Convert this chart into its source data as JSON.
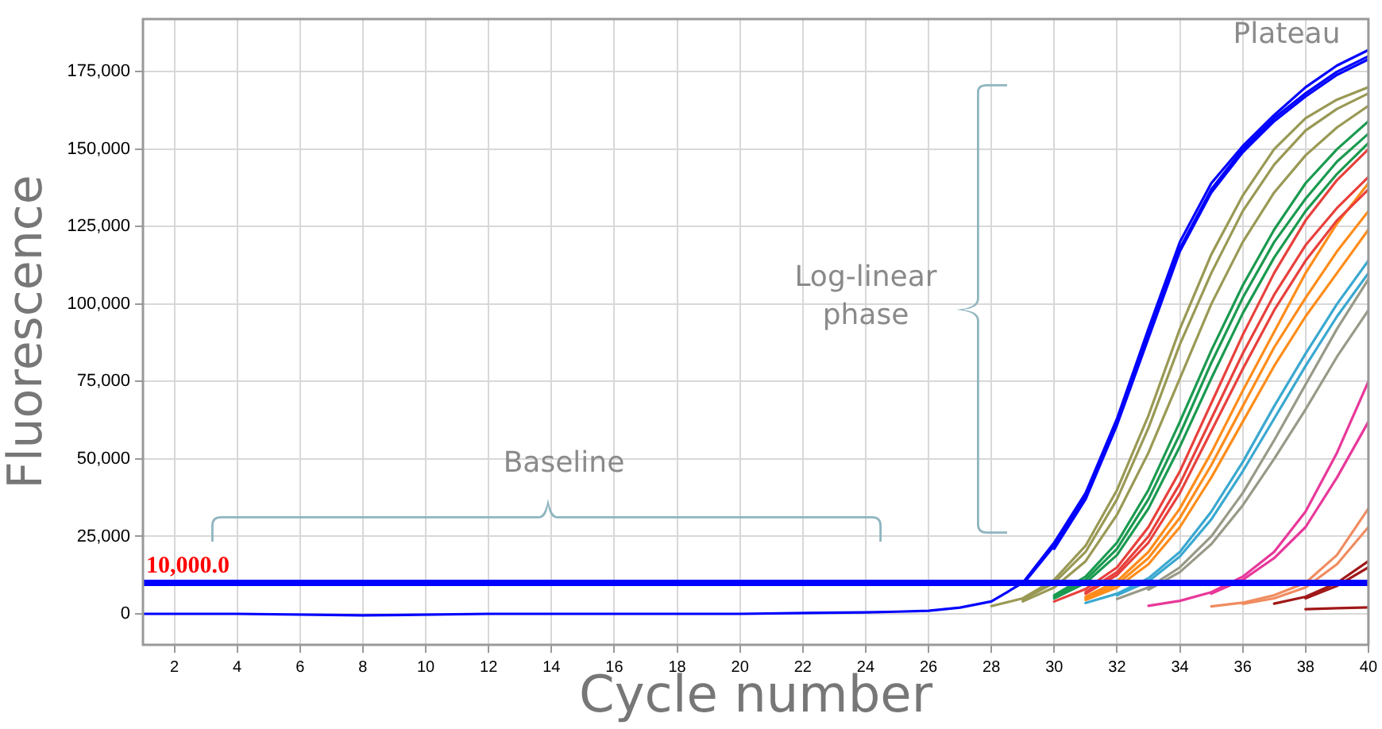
{
  "chart_data": {
    "type": "line",
    "xlabel": "Cycle number",
    "ylabel": "Fluorescence",
    "annotations": [
      "Plateau",
      "Log-linear phase",
      "Baseline"
    ],
    "x": [
      1,
      4,
      8,
      12,
      16,
      20,
      24,
      25,
      26,
      27,
      28,
      29,
      30,
      31,
      32,
      33,
      34,
      35,
      36,
      37,
      38,
      39,
      40
    ],
    "xlim": [
      1,
      40
    ],
    "xticks": [
      2,
      4,
      6,
      8,
      10,
      12,
      14,
      16,
      18,
      20,
      22,
      24,
      26,
      28,
      30,
      32,
      34,
      36,
      38,
      40
    ],
    "ylim": [
      -10000,
      192000
    ],
    "yticks": [
      {
        "value": 0,
        "label": "0"
      },
      {
        "value": 25000,
        "label": "25,000"
      },
      {
        "value": 50000,
        "label": "50,000"
      },
      {
        "value": 75000,
        "label": "75,000"
      },
      {
        "value": 100000,
        "label": "100,000"
      },
      {
        "value": 125000,
        "label": "125,000"
      },
      {
        "value": 150000,
        "label": "150,000"
      },
      {
        "value": 175000,
        "label": "175,000"
      }
    ],
    "grid": true,
    "legend": false,
    "marker": "none",
    "line_style": "solid",
    "ref_lines": [
      {
        "axis": "y",
        "value": 10000,
        "label": "10,000.0",
        "color": "#0000ff"
      }
    ],
    "series": [
      {
        "color": "#0000ff",
        "values": [
          0,
          0,
          -500,
          0,
          0,
          0,
          500,
          700,
          1000,
          2000,
          4000,
          10000,
          23000,
          39000,
          63000,
          92000,
          120000,
          139000,
          151000,
          161000,
          170000,
          177000,
          182000
        ]
      },
      {
        "color": "#0000ff",
        "values": [
          null,
          null,
          null,
          null,
          null,
          null,
          null,
          null,
          null,
          null,
          null,
          9500,
          22000,
          38000,
          62000,
          90000,
          118000,
          137000,
          150000,
          160000,
          168000,
          175000,
          180000
        ]
      },
      {
        "color": "#0000ff",
        "values": [
          null,
          null,
          null,
          null,
          null,
          null,
          null,
          null,
          null,
          null,
          null,
          null,
          21000,
          37000,
          61000,
          89000,
          117000,
          136000,
          149000,
          159000,
          167000,
          174000,
          179000
        ]
      },
      {
        "color": "#999955",
        "values": [
          null,
          null,
          null,
          null,
          null,
          null,
          null,
          null,
          null,
          null,
          2500,
          5000,
          11000,
          22000,
          40000,
          64000,
          92000,
          116000,
          135000,
          150000,
          160000,
          166000,
          170000
        ]
      },
      {
        "color": "#999955",
        "values": [
          null,
          null,
          null,
          null,
          null,
          null,
          null,
          null,
          null,
          null,
          null,
          4600,
          10000,
          20000,
          37000,
          60000,
          87000,
          110000,
          130000,
          145000,
          156000,
          163000,
          168000
        ]
      },
      {
        "color": "#999955",
        "values": [
          null,
          null,
          null,
          null,
          null,
          null,
          null,
          null,
          null,
          null,
          null,
          4000,
          8500,
          17000,
          32000,
          52000,
          76000,
          100000,
          120000,
          136000,
          148000,
          157000,
          164000
        ]
      },
      {
        "color": "#1a9a50",
        "values": [
          null,
          null,
          null,
          null,
          null,
          null,
          null,
          null,
          null,
          null,
          null,
          null,
          6000,
          12000,
          23000,
          40000,
          62000,
          85000,
          106000,
          124000,
          139000,
          150000,
          159000
        ]
      },
      {
        "color": "#1a9a50",
        "values": [
          null,
          null,
          null,
          null,
          null,
          null,
          null,
          null,
          null,
          null,
          null,
          null,
          5500,
          11000,
          21000,
          37000,
          58000,
          81000,
          102000,
          120000,
          134000,
          146000,
          155000
        ]
      },
      {
        "color": "#1a9a50",
        "values": [
          null,
          null,
          null,
          null,
          null,
          null,
          null,
          null,
          null,
          null,
          null,
          null,
          5000,
          10000,
          19000,
          34000,
          54000,
          76000,
          97000,
          115000,
          130000,
          142000,
          152000
        ]
      },
      {
        "color": "#e8403c",
        "values": [
          null,
          null,
          null,
          null,
          null,
          null,
          null,
          null,
          null,
          null,
          null,
          null,
          4000,
          8000,
          15000,
          28000,
          46000,
          68000,
          90000,
          110000,
          127000,
          140000,
          150000
        ]
      },
      {
        "color": "#e8403c",
        "values": [
          null,
          null,
          null,
          null,
          null,
          null,
          null,
          null,
          null,
          null,
          null,
          null,
          null,
          7000,
          13500,
          25000,
          42000,
          63000,
          84000,
          103000,
          119000,
          131000,
          141000
        ]
      },
      {
        "color": "#e8403c",
        "values": [
          null,
          null,
          null,
          null,
          null,
          null,
          null,
          null,
          null,
          null,
          null,
          null,
          null,
          6500,
          12500,
          23000,
          39000,
          59000,
          79000,
          98000,
          114000,
          127000,
          137000
        ]
      },
      {
        "color": "#ff8c1a",
        "values": [
          null,
          null,
          null,
          null,
          null,
          null,
          null,
          null,
          null,
          null,
          null,
          null,
          null,
          5500,
          10500,
          20000,
          34000,
          52000,
          72000,
          91000,
          110000,
          126000,
          139000
        ]
      },
      {
        "color": "#ff8c1a",
        "values": [
          null,
          null,
          null,
          null,
          null,
          null,
          null,
          null,
          null,
          null,
          null,
          null,
          null,
          5000,
          9500,
          18000,
          31000,
          48000,
          67000,
          86000,
          102000,
          117000,
          130000
        ]
      },
      {
        "color": "#ff8c1a",
        "values": [
          null,
          null,
          null,
          null,
          null,
          null,
          null,
          null,
          null,
          null,
          null,
          null,
          null,
          4500,
          8500,
          16000,
          28000,
          44000,
          62000,
          80000,
          96000,
          110000,
          124000
        ]
      },
      {
        "color": "#3aa8d0",
        "values": [
          null,
          null,
          null,
          null,
          null,
          null,
          null,
          null,
          null,
          null,
          null,
          null,
          null,
          3500,
          6500,
          11500,
          20000,
          33000,
          49000,
          67000,
          84000,
          100000,
          114000
        ]
      },
      {
        "color": "#3aa8d0",
        "values": [
          null,
          null,
          null,
          null,
          null,
          null,
          null,
          null,
          null,
          null,
          null,
          null,
          null,
          null,
          6000,
          10500,
          18500,
          30500,
          46000,
          63000,
          80000,
          96000,
          110000
        ]
      },
      {
        "color": "#999988",
        "values": [
          null,
          null,
          null,
          null,
          null,
          null,
          null,
          null,
          null,
          null,
          null,
          null,
          null,
          null,
          4800,
          8500,
          15000,
          25000,
          39000,
          56000,
          74000,
          92000,
          108000
        ]
      },
      {
        "color": "#999988",
        "values": [
          null,
          null,
          null,
          null,
          null,
          null,
          null,
          null,
          null,
          null,
          null,
          null,
          null,
          null,
          null,
          7800,
          13500,
          22500,
          35000,
          50000,
          66000,
          83000,
          98000
        ]
      },
      {
        "color": "#e8389a",
        "values": [
          null,
          null,
          null,
          null,
          null,
          null,
          null,
          null,
          null,
          null,
          null,
          null,
          null,
          null,
          null,
          2600,
          4200,
          7000,
          12000,
          20000,
          33000,
          52000,
          75000
        ]
      },
      {
        "color": "#e8389a",
        "values": [
          null,
          null,
          null,
          null,
          null,
          null,
          null,
          null,
          null,
          null,
          null,
          null,
          null,
          null,
          null,
          null,
          null,
          6500,
          11000,
          18000,
          28000,
          44000,
          62000
        ]
      },
      {
        "color": "#f08c60",
        "values": [
          null,
          null,
          null,
          null,
          null,
          null,
          null,
          null,
          null,
          null,
          null,
          null,
          null,
          null,
          null,
          null,
          null,
          2400,
          3600,
          6000,
          10000,
          19000,
          34000
        ]
      },
      {
        "color": "#f08c60",
        "values": [
          null,
          null,
          null,
          null,
          null,
          null,
          null,
          null,
          null,
          null,
          null,
          null,
          null,
          null,
          null,
          null,
          null,
          null,
          3200,
          5000,
          8500,
          16000,
          28000
        ]
      },
      {
        "color": "#a01818",
        "values": [
          null,
          null,
          null,
          null,
          null,
          null,
          null,
          null,
          null,
          null,
          null,
          null,
          null,
          null,
          null,
          null,
          null,
          null,
          null,
          3300,
          5500,
          10000,
          17000
        ]
      },
      {
        "color": "#a01818",
        "values": [
          null,
          null,
          null,
          null,
          null,
          null,
          null,
          null,
          null,
          null,
          null,
          null,
          null,
          null,
          null,
          null,
          null,
          null,
          null,
          null,
          5000,
          9000,
          15000
        ]
      },
      {
        "color": "#a01818",
        "values": [
          null,
          null,
          null,
          null,
          null,
          null,
          null,
          null,
          null,
          null,
          null,
          null,
          null,
          null,
          null,
          null,
          null,
          null,
          null,
          null,
          1500,
          1800,
          2100
        ]
      }
    ]
  }
}
